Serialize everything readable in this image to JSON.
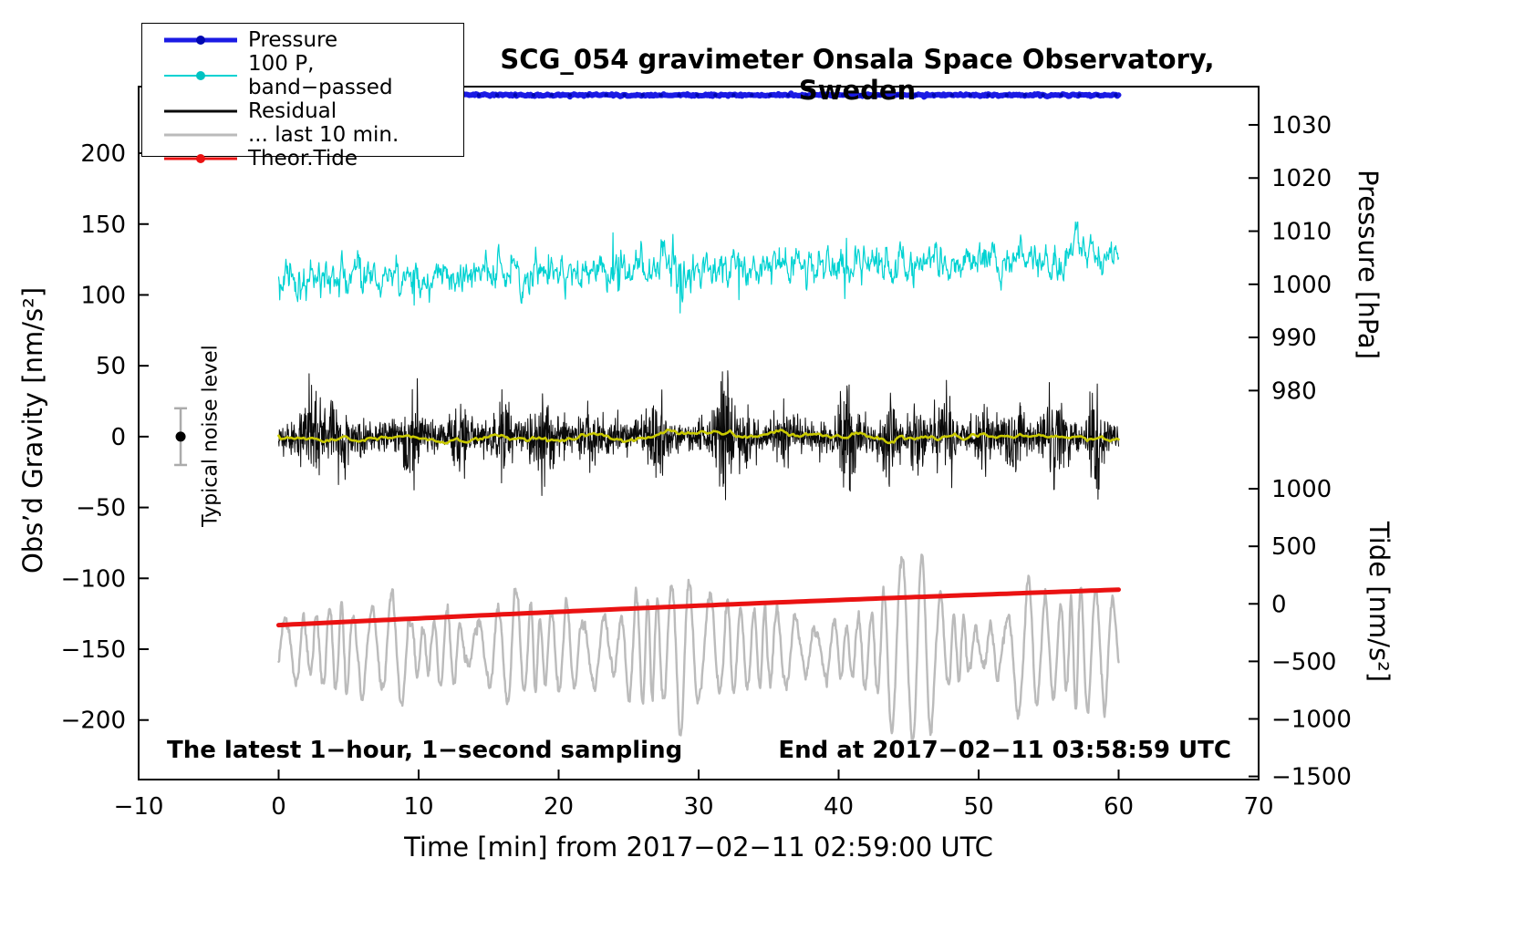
{
  "figure": {
    "background": "#ffffff"
  },
  "chart_data": {
    "type": "line",
    "title": "SCG_054 gravimeter Onsala Space Observatory, Sweden",
    "x_axis": {
      "label": "Time [min] from 2017−02−11 02:59:00 UTC",
      "xlim": [
        -10,
        70
      ],
      "ticks": [
        -10,
        0,
        10,
        20,
        30,
        40,
        50,
        60,
        70
      ],
      "tick_labels": [
        "−10",
        "0",
        "10",
        "20",
        "30",
        "40",
        "50",
        "60",
        "70"
      ]
    },
    "left_axis": {
      "label": "Obs’d Gravity [nm/s²]",
      "ylim": [
        -242,
        247
      ],
      "ticks": [
        200,
        150,
        100,
        50,
        0,
        -50,
        -100,
        -150,
        -200
      ],
      "tick_labels": [
        "200",
        "150",
        "100",
        "50",
        "0",
        "−50",
        "−100",
        "−150",
        "−200"
      ]
    },
    "right_axis_pressure": {
      "label": "Pressure [hPa]",
      "ticks_hPa": [
        1030,
        1020,
        1010,
        1000,
        990,
        980
      ],
      "tick_labels": [
        "1030",
        "1020",
        "1010",
        "1000",
        "990",
        "980"
      ],
      "tick_g": [
        220,
        182.5,
        145,
        107.5,
        70,
        32.5
      ]
    },
    "right_axis_tide": {
      "label": "Tide [nm/s²]",
      "ticks_nms2": [
        1000,
        500,
        0,
        -500,
        -1000,
        -1500
      ],
      "tick_labels": [
        "1000",
        "500",
        "0",
        "−500",
        "−1000",
        "−1500"
      ],
      "tick_g": [
        -36.8,
        -77.4,
        -118,
        -158.6,
        -199.2,
        -239.8
      ]
    },
    "legend": {
      "items": [
        {
          "label": "Pressure",
          "color": "#1b1be4",
          "marker": true,
          "marker_color": "#0008b0",
          "line_width": 5
        },
        {
          "label": "100 P, band−passed",
          "color": "#00d2d2",
          "marker": true,
          "marker_color": "#00c2c2",
          "line_width": 2
        },
        {
          "label": "Residual",
          "color": "#0a0a0a",
          "marker": false,
          "marker_color": "#0a0a0a",
          "line_width": 3
        },
        {
          "label": "... last 10 min.",
          "color": "#bbbbbb",
          "marker": false,
          "marker_color": "#bbbbbb",
          "line_width": 3
        },
        {
          "label": "Theor.Tide",
          "color": "#ea1212",
          "marker": true,
          "marker_color": "#ea1212",
          "line_width": 3
        }
      ]
    },
    "annotations": {
      "sampling": "The latest 1−hour, 1−second sampling",
      "end_time": "End at 2017−02−11 03:58:59 UTC",
      "noise_level": "Typical noise level"
    },
    "noise_marker": {
      "x": -7,
      "g": 0,
      "error": 20
    },
    "series": [
      {
        "name": "100 P, band-passed",
        "color": "#00d2d2",
        "width": 1.2,
        "kind": "ar1",
        "x_range": [
          0,
          60
        ],
        "step": 0.04,
        "base_start": 111,
        "base_end": 126,
        "ar": 0.72,
        "sd": 5.2,
        "spike_prob": 0.005,
        "spike_amp": 26,
        "approx_pressure_hPa": 1000
      },
      {
        "name": "... last 10 min.",
        "color": "#bbbbbb",
        "width": 2.4,
        "kind": "osc",
        "x_range": [
          0,
          60
        ],
        "step": 0.04,
        "base": -150,
        "period": 1.15,
        "amp_base": 22,
        "amp_sd": 8,
        "bursts": [
          {
            "t": 8.2,
            "w": 1.2,
            "a": 16
          },
          {
            "t": 16.5,
            "w": 1.2,
            "a": 20
          },
          {
            "t": 21.0,
            "w": 0.8,
            "a": 10
          },
          {
            "t": 28.8,
            "w": 1.5,
            "a": 40
          },
          {
            "t": 31.0,
            "w": 0.8,
            "a": 18
          },
          {
            "t": 36.0,
            "w": 1.0,
            "a": 10
          },
          {
            "t": 44.0,
            "w": 0.8,
            "a": 20
          },
          {
            "t": 45.8,
            "w": 1.7,
            "a": 46
          },
          {
            "t": 53.0,
            "w": 1.0,
            "a": 12
          },
          {
            "t": 57.5,
            "w": 1.2,
            "a": 20
          }
        ]
      },
      {
        "name": "Theor.Tide",
        "color": "#ea1212",
        "width": 5,
        "kind": "trend",
        "x_range": [
          0,
          60
        ],
        "step": 0.5,
        "g_start": -133,
        "g_end": -108,
        "curve": 1.2,
        "tide_start_nms2": -185,
        "tide_end_nms2": 123
      },
      {
        "name": "Residual",
        "color": "#0a0a0a",
        "width": 1,
        "kind": "noise_env",
        "x_range": [
          0,
          60
        ],
        "step": 0.025,
        "base_amp": 11,
        "bursts": [
          {
            "t": 2.5,
            "w": 1.0,
            "a": 18
          },
          {
            "t": 4.2,
            "w": 0.7,
            "a": 22
          },
          {
            "t": 9.6,
            "w": 0.8,
            "a": 26
          },
          {
            "t": 13.0,
            "w": 0.6,
            "a": 16
          },
          {
            "t": 16.0,
            "w": 0.6,
            "a": 16
          },
          {
            "t": 19.0,
            "w": 0.9,
            "a": 24
          },
          {
            "t": 22.5,
            "w": 0.8,
            "a": 14
          },
          {
            "t": 27.0,
            "w": 0.7,
            "a": 18
          },
          {
            "t": 31.8,
            "w": 0.55,
            "a": 40
          },
          {
            "t": 33.2,
            "w": 0.5,
            "a": 16
          },
          {
            "t": 36.0,
            "w": 0.6,
            "a": 14
          },
          {
            "t": 40.6,
            "w": 0.7,
            "a": 26
          },
          {
            "t": 43.6,
            "w": 0.6,
            "a": 22
          },
          {
            "t": 45.6,
            "w": 0.5,
            "a": 16
          },
          {
            "t": 47.6,
            "w": 0.7,
            "a": 24
          },
          {
            "t": 50.2,
            "w": 0.5,
            "a": 14
          },
          {
            "t": 52.6,
            "w": 0.6,
            "a": 18
          },
          {
            "t": 55.4,
            "w": 0.7,
            "a": 24
          },
          {
            "t": 58.4,
            "w": 0.6,
            "a": 28
          }
        ]
      },
      {
        "name": "Residual (smoothed)",
        "color": "#c9c900",
        "width": 2.6,
        "kind": "ar1",
        "x_range": [
          0,
          60
        ],
        "step": 0.15,
        "base_start": 0,
        "base_end": 0,
        "ar": 0.9,
        "sd": 0.9,
        "spike_prob": 0,
        "spike_amp": 0
      },
      {
        "name": "Pressure",
        "color": "#1b1be4",
        "width": 6,
        "kind": "flat",
        "x_range": [
          0,
          60
        ],
        "step": 0.1,
        "base": 241,
        "noise_sd": 0.4,
        "dots_every": 1.3,
        "dot_color": "#0008b0",
        "approx_pressure_hPa": 1035
      }
    ]
  }
}
